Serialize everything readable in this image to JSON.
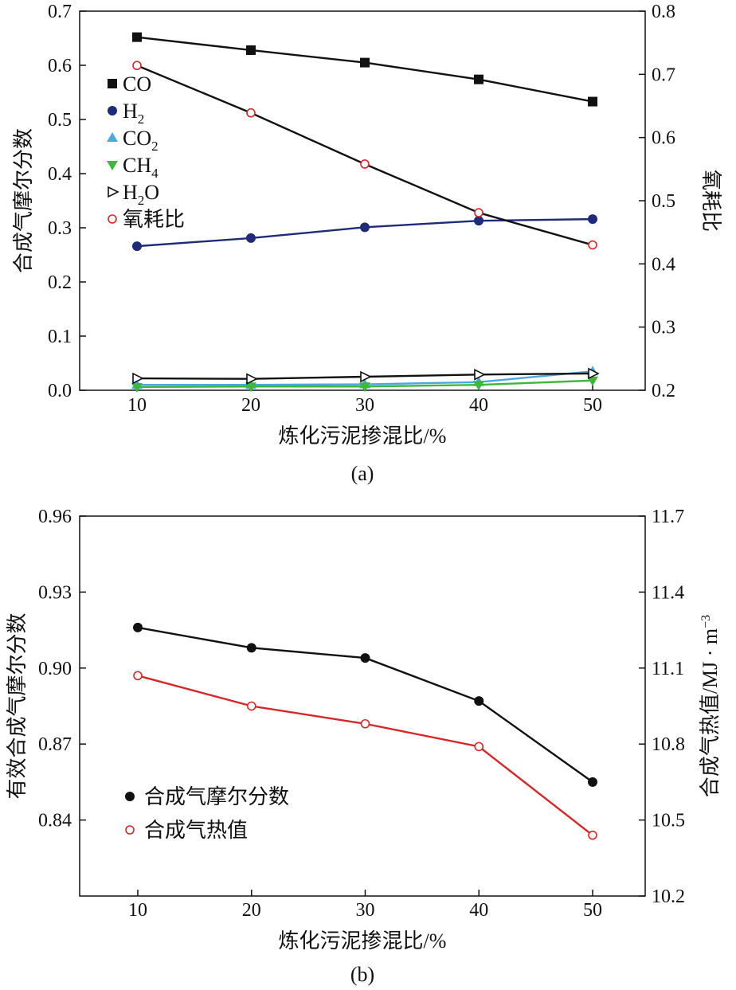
{
  "chart_data": [
    {
      "panel": "a",
      "caption": "(a)",
      "type": "line",
      "xlabel": "炼化污泥掺混比/%",
      "ylabel_left": "合成气摩尔分数",
      "ylabel_right": "氧耗比",
      "xlim": [
        10,
        50
      ],
      "xticks": [
        10,
        20,
        30,
        40,
        50
      ],
      "ylim_left": [
        0.0,
        0.7
      ],
      "yticks_left": [
        "0.0",
        "0.1",
        "0.2",
        "0.3",
        "0.4",
        "0.5",
        "0.6",
        "0.7"
      ],
      "ylim_right": [
        0.2,
        0.8
      ],
      "yticks_right": [
        "0.2",
        "0.3",
        "0.4",
        "0.5",
        "0.6",
        "0.7",
        "0.8"
      ],
      "legend_position": "top-left",
      "x": [
        10,
        20,
        30,
        40,
        50
      ],
      "series": [
        {
          "name": "CO",
          "legend_text": "CO",
          "axis": "left",
          "marker": "square",
          "line_color": "#111111",
          "marker_color": "#111111",
          "values": [
            0.652,
            0.628,
            0.605,
            0.574,
            0.533
          ]
        },
        {
          "name": "H2",
          "legend_text": "H",
          "legend_sub": "2",
          "axis": "left",
          "marker": "circle",
          "line_color": "#1f2a78",
          "marker_color": "#1f2a78",
          "values": [
            0.266,
            0.281,
            0.301,
            0.313,
            0.316
          ]
        },
        {
          "name": "CO2",
          "legend_text": "CO",
          "legend_sub": "2",
          "axis": "left",
          "marker": "triangle-up",
          "line_color": "#4aa8e0",
          "marker_color": "#4aa8e0",
          "values": [
            0.01,
            0.01,
            0.011,
            0.015,
            0.035
          ]
        },
        {
          "name": "CH4",
          "legend_text": "CH",
          "legend_sub": "4",
          "axis": "left",
          "marker": "triangle-down",
          "line_color": "#3db83a",
          "marker_color": "#3db83a",
          "values": [
            0.006,
            0.007,
            0.007,
            0.01,
            0.018
          ]
        },
        {
          "name": "H2O",
          "legend_text": "H",
          "legend_sub": "2",
          "legend_tail": "O",
          "axis": "left",
          "marker": "triangle-right-open",
          "line_color": "#111111",
          "marker_color": "#111111",
          "values": [
            0.022,
            0.021,
            0.025,
            0.029,
            0.031
          ]
        },
        {
          "name": "氧耗比",
          "legend_text": "氧耗比",
          "axis": "right",
          "marker": "circle-open",
          "line_color": "#111111",
          "marker_color": "#d62728",
          "values": [
            0.714,
            0.639,
            0.558,
            0.481,
            0.43
          ]
        }
      ]
    },
    {
      "panel": "b",
      "caption": "(b)",
      "type": "line",
      "xlabel": "炼化污泥掺混比/%",
      "ylabel_left": "有效合成气摩尔分数",
      "ylabel_right": "合成气热值/MJ · m",
      "ylabel_right_sup": "−3",
      "xlim": [
        10,
        50
      ],
      "xticks": [
        10,
        20,
        30,
        40,
        50
      ],
      "ylim_left": [
        0.81,
        0.96
      ],
      "yticks_left": [
        "0.84",
        "0.87",
        "0.90",
        "0.93",
        "0.96"
      ],
      "ylim_right": [
        10.2,
        11.7
      ],
      "yticks_right": [
        "10.2",
        "10.5",
        "10.8",
        "11.1",
        "11.4",
        "11.7"
      ],
      "legend_position": "bottom-left",
      "x": [
        10,
        20,
        30,
        40,
        50
      ],
      "series": [
        {
          "name": "合成气摩尔分数",
          "legend_text": "合成气摩尔分数",
          "axis": "left",
          "marker": "circle",
          "line_color": "#111111",
          "marker_color": "#111111",
          "values": [
            0.916,
            0.908,
            0.904,
            0.887,
            0.855
          ]
        },
        {
          "name": "合成气热值",
          "legend_text": "合成气热值",
          "axis": "right",
          "marker": "circle-open",
          "line_color": "#d62728",
          "marker_color": "#d62728",
          "values": [
            11.07,
            10.95,
            10.88,
            10.79,
            10.44
          ]
        }
      ]
    }
  ]
}
